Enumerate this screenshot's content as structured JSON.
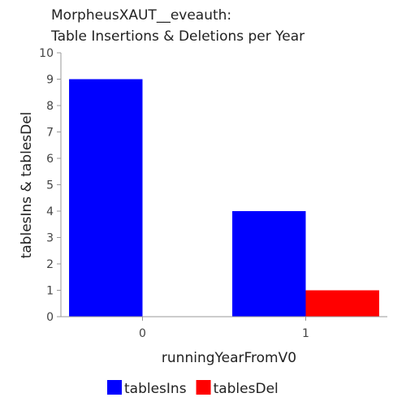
{
  "chart_data": {
    "type": "bar",
    "title_lines": [
      "MorpheusXAUT__eveauth:",
      "Table Insertions & Deletions per Year"
    ],
    "xlabel": "runningYearFromV0",
    "ylabel": "tablesIns & tablesDel",
    "categories": [
      "0",
      "1"
    ],
    "series": [
      {
        "name": "tablesIns",
        "color": "#0000ff",
        "values": [
          9,
          4
        ]
      },
      {
        "name": "tablesDel",
        "color": "#ff0000",
        "values": [
          0,
          1
        ]
      }
    ],
    "ylim": [
      0,
      10
    ],
    "yticks": [
      0,
      1,
      2,
      3,
      4,
      5,
      6,
      7,
      8,
      9,
      10
    ],
    "grid": false,
    "legend_position": "bottom"
  }
}
